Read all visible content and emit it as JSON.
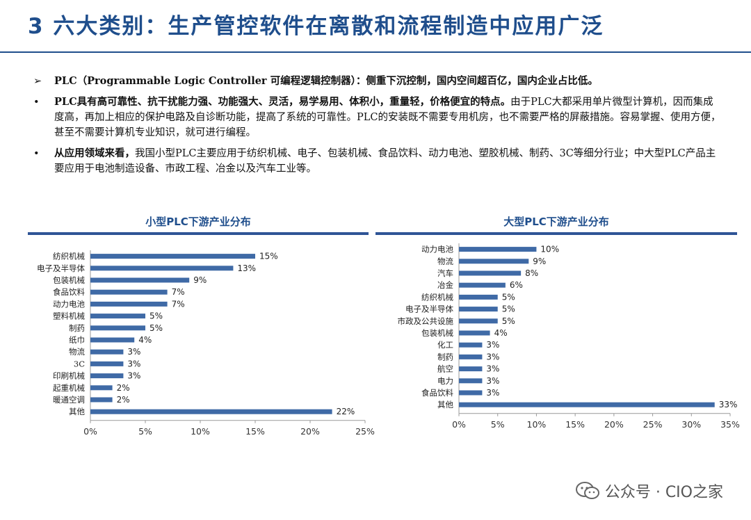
{
  "header": {
    "title": "3 六大类别：生产管控软件在离散和流程制造中应用广泛"
  },
  "bullets": [
    {
      "mark": "➢",
      "bold": "PLC（Programmable Logic Controller 可编程逻辑控制器）：侧重下沉控制，国内空间超百亿，国内企业占比低。",
      "text": ""
    },
    {
      "mark": "•",
      "bold": "PLC具有高可靠性、抗干扰能力强、功能强大、灵活，易学易用、体积小，重量轻，价格便宜的特点。",
      "text": "由于PLC大都采用单片微型计算机，因而集成度高，再加上相应的保护电路及自诊断功能，提高了系统的可靠性。PLC的安装既不需要专用机房，也不需要严格的屏蔽措施。容易掌握、使用方便，甚至不需要计算机专业知识，就可进行编程。"
    },
    {
      "mark": "•",
      "bold": "从应用领域来看，",
      "text": "我国小型PLC主要应用于纺织机械、电子、包装机械、食品饮料、动力电池、塑胶机械、制药、3C等细分行业；中大型PLC产品主要应用于电池制造设备、市政工程、冶金以及汽车工业等。"
    }
  ],
  "watermark": {
    "text": "公众号 · CIO之家",
    "icon": "wechat-icon"
  },
  "chart_data": [
    {
      "type": "bar",
      "orientation": "horizontal",
      "title": "小型PLC下游产业分布",
      "categories": [
        "纺织机械",
        "电子及半导体",
        "包装机械",
        "食品饮料",
        "动力电池",
        "塑料机械",
        "制药",
        "纸巾",
        "物流",
        "3C",
        "印刷机械",
        "起重机械",
        "暖通空调",
        "其他"
      ],
      "values": [
        15,
        13,
        9,
        7,
        7,
        5,
        5,
        4,
        3,
        3,
        3,
        2,
        2,
        22
      ],
      "value_labels": [
        "15%",
        "13%",
        "9%",
        "7%",
        "7%",
        "5%",
        "5%",
        "4%",
        "3%",
        "3%",
        "3%",
        "2%",
        "2%",
        "22%"
      ],
      "xlim": [
        0,
        25
      ],
      "xticks": [
        "0%",
        "5%",
        "10%",
        "15%",
        "20%",
        "25%"
      ],
      "bar_color": "#3f6aa6",
      "grid": false
    },
    {
      "type": "bar",
      "orientation": "horizontal",
      "title": "大型PLC下游产业分布",
      "categories": [
        "动力电池",
        "物流",
        "汽车",
        "冶金",
        "纺织机械",
        "电子及半导体",
        "市政及公共设施",
        "包装机械",
        "化工",
        "制药",
        "航空",
        "电力",
        "食品饮料",
        "其他"
      ],
      "values": [
        10,
        9,
        8,
        6,
        5,
        5,
        5,
        4,
        3,
        3,
        3,
        3,
        3,
        33
      ],
      "value_labels": [
        "10%",
        "9%",
        "8%",
        "6%",
        "5%",
        "5%",
        "5%",
        "4%",
        "3%",
        "3%",
        "3%",
        "3%",
        "3%",
        "33%"
      ],
      "xlim": [
        0,
        35
      ],
      "xticks": [
        "0%",
        "5%",
        "10%",
        "15%",
        "20%",
        "25%",
        "30%",
        "35%"
      ],
      "bar_color": "#3f6aa6",
      "grid": false
    }
  ]
}
